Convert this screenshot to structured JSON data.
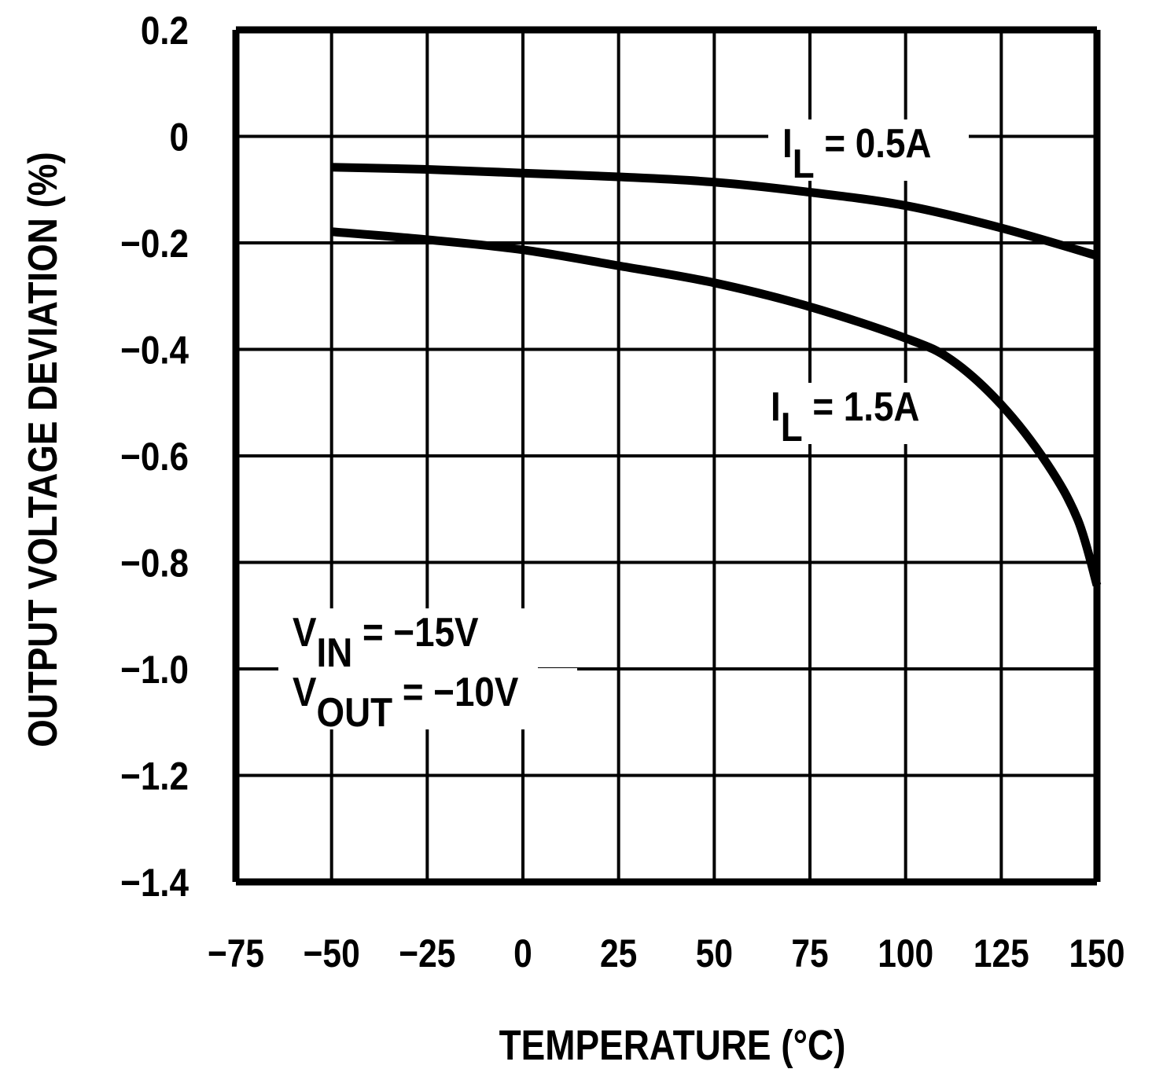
{
  "chart_data": {
    "type": "line",
    "title": "",
    "xlabel": "TEMPERATURE (°C)",
    "ylabel": "OUTPUT VOLTAGE DEVIATION (%)",
    "xlim": [
      -75,
      150
    ],
    "ylim": [
      -1.4,
      0.2
    ],
    "xticks": [
      -75,
      -50,
      -25,
      0,
      25,
      50,
      75,
      100,
      125,
      150
    ],
    "xtick_labels": [
      "−75",
      "−50",
      "−25",
      "0",
      "25",
      "50",
      "75",
      "100",
      "125",
      "150"
    ],
    "yticks": [
      0.2,
      0,
      -0.2,
      -0.4,
      -0.6,
      -0.8,
      -1.0,
      -1.2,
      -1.4
    ],
    "ytick_labels": [
      "0.2",
      "0",
      "−0.2",
      "−0.4",
      "−0.6",
      "−0.8",
      "−1.0",
      "−1.2",
      "−1.4"
    ],
    "grid": true,
    "line_color": "#000000",
    "series": [
      {
        "name": "IL = 0.5A",
        "label_main": "I",
        "label_sub": "L",
        "label_rest": " = 0.5A",
        "x": [
          -50,
          -25,
          0,
          25,
          50,
          75,
          100,
          125,
          150
        ],
        "y": [
          -0.058,
          -0.062,
          -0.069,
          -0.076,
          -0.086,
          -0.105,
          -0.13,
          -0.172,
          -0.224
        ]
      },
      {
        "name": "IL = 1.5A",
        "label_main": "I",
        "label_sub": "L",
        "label_rest": " = 1.5A",
        "x": [
          -50,
          -25,
          0,
          25,
          50,
          75,
          100,
          112,
          125,
          137,
          145,
          150
        ],
        "y": [
          -0.179,
          -0.194,
          -0.213,
          -0.243,
          -0.275,
          -0.32,
          -0.379,
          -0.42,
          -0.504,
          -0.615,
          -0.72,
          -0.843
        ]
      }
    ],
    "annotations": [
      {
        "main": "V",
        "sub": "IN",
        "rest": " = −15V"
      },
      {
        "main": "V",
        "sub": "OUT",
        "rest": " = −10V"
      }
    ]
  }
}
